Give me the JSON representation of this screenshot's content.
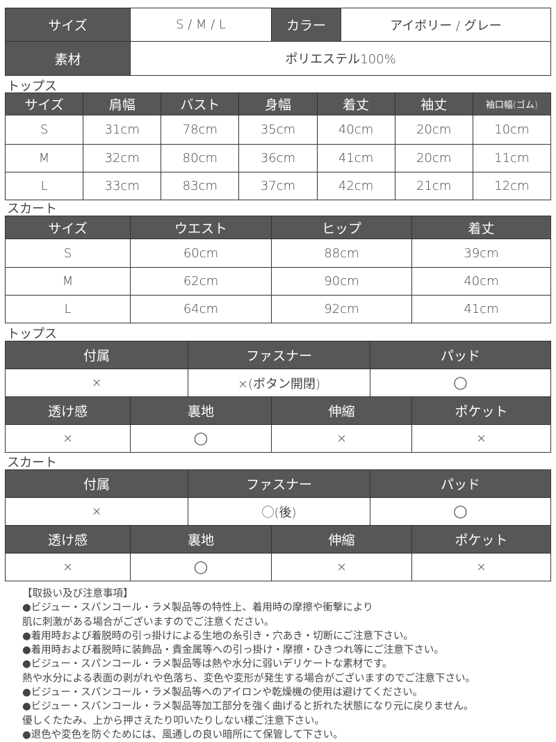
{
  "summary": {
    "size_label": "サイズ",
    "size_value": "S / M / L",
    "color_label": "カラー",
    "color_value": "アイボリー / グレー",
    "material_label": "素材",
    "material_value": "ポリエステル100%"
  },
  "tops_size": {
    "title": "トップス",
    "headers": [
      "サイズ",
      "肩幅",
      "バスト",
      "身幅",
      "着丈",
      "袖丈",
      "袖口幅(ゴム)"
    ],
    "rows": [
      [
        "S",
        "31cm",
        "78cm",
        "35cm",
        "40cm",
        "20cm",
        "10cm"
      ],
      [
        "M",
        "32cm",
        "80cm",
        "36cm",
        "41cm",
        "20cm",
        "11cm"
      ],
      [
        "L",
        "33cm",
        "83cm",
        "37cm",
        "42cm",
        "21cm",
        "12cm"
      ]
    ]
  },
  "skirt_size": {
    "title": "スカート",
    "headers": [
      "サイズ",
      "ウエスト",
      "ヒップ",
      "着丈"
    ],
    "rows": [
      [
        "S",
        "60cm",
        "88cm",
        "39cm"
      ],
      [
        "M",
        "62cm",
        "90cm",
        "40cm"
      ],
      [
        "L",
        "64cm",
        "92cm",
        "41cm"
      ]
    ]
  },
  "tops_spec": {
    "title": "トップス",
    "headers1": [
      "付属",
      "ファスナー",
      "パッド"
    ],
    "values1": [
      "×",
      "×(ボタン開閉)",
      "◯"
    ],
    "headers2": [
      "透け感",
      "裏地",
      "伸縮",
      "ポケット"
    ],
    "values2": [
      "×",
      "◯",
      "×",
      "×"
    ]
  },
  "skirt_spec": {
    "title": "スカート",
    "headers1": [
      "付属",
      "ファスナー",
      "パッド"
    ],
    "values1": [
      "×",
      "◯(後)",
      "◯"
    ],
    "headers2": [
      "透け感",
      "裏地",
      "伸縮",
      "ポケット"
    ],
    "values2": [
      "×",
      "◯",
      "×",
      "×"
    ]
  },
  "notes": [
    "【取扱い及び注意事項】",
    "●ビジュー・スパンコール・ラメ製品等の特性上、着用時の摩擦や衝撃により",
    "肌に刺激がある場合がございますのでご注意ください。",
    "●着用時および着脱時の引っ掛けによる生地の糸引き・穴あき・切断にご注意下さい。",
    "●着用時および着脱時に装飾品・貴金属等への引っ掛け・摩擦・ひきつれ等にご注意下さい。",
    "●ビジュー・スパンコール・ラメ製品等は熱や水分に弱いデリケートな素材です。",
    "熱や水分による表面の剥がれや色落ち、変色や変形が発生する場合がございますのでご注意下さい。",
    "●ビジュー・スパンコール・ラメ製品等へのアイロンや乾燥機の使用は避けてください。",
    "●ビジュー・スパンコール・ラメ製品等加工部分を強く曲げると折れた状態になり元に戻りません。",
    "優しくたたみ、上から押さえたり叩いたりしない様ご注意下さい。",
    "●退色や変色を防ぐためには、風通しの良い暗所にて保管して下さい。"
  ]
}
